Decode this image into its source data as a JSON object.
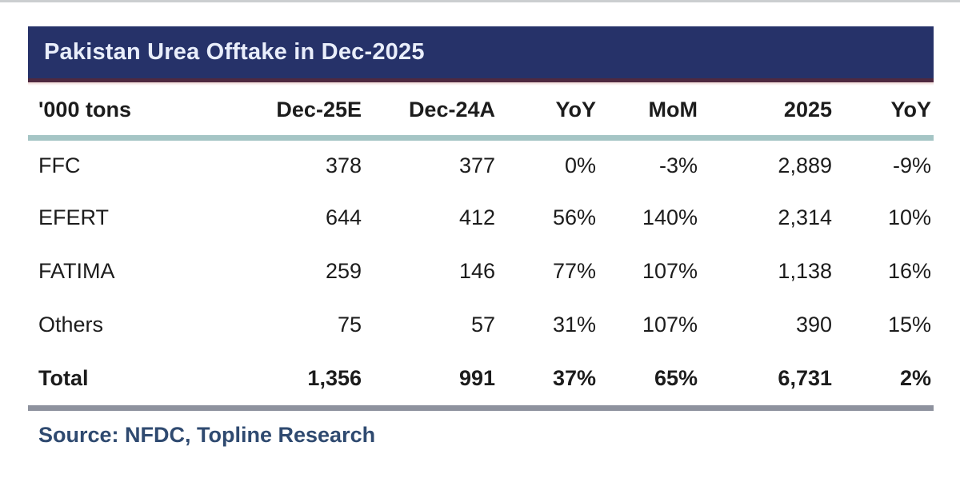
{
  "page": {
    "title": "Pakistan Urea Offtake in Dec-2025",
    "source": "Source: NFDC, Topline Research"
  },
  "colors": {
    "title_bar_bg": "#263269",
    "title_bar_text": "#e9eefb",
    "maroon_accent_line": "#4e2940",
    "teal_divider": "#a5c5c5",
    "gray_divider": "#8e929e",
    "source_text": "#2f4a70",
    "body_text": "#1c1c1c"
  },
  "chart_data": {
    "type": "table",
    "title": "Pakistan Urea Offtake in Dec-2025",
    "unit": "'000 tons",
    "columns": [
      "'000 tons",
      "Dec-25E",
      "Dec-24A",
      "YoY",
      "MoM",
      "2025",
      "YoY"
    ],
    "rows": [
      {
        "cells": [
          "FFC",
          "378",
          "377",
          "0%",
          "-3%",
          "2,889",
          "-9%"
        ]
      },
      {
        "cells": [
          "EFERT",
          "644",
          "412",
          "56%",
          "140%",
          "2,314",
          "10%"
        ]
      },
      {
        "cells": [
          "FATIMA",
          "259",
          "146",
          "77%",
          "107%",
          "1,138",
          "16%"
        ]
      },
      {
        "cells": [
          "Others",
          "75",
          "57",
          "31%",
          "107%",
          "390",
          "15%"
        ]
      },
      {
        "cells": [
          "Total",
          "1,356",
          "991",
          "37%",
          "65%",
          "6,731",
          "2%"
        ]
      }
    ],
    "source": "Source: NFDC, Topline Research",
    "layout": {
      "grid": "off",
      "row_dividers": "none",
      "total_row_bold": true
    }
  }
}
